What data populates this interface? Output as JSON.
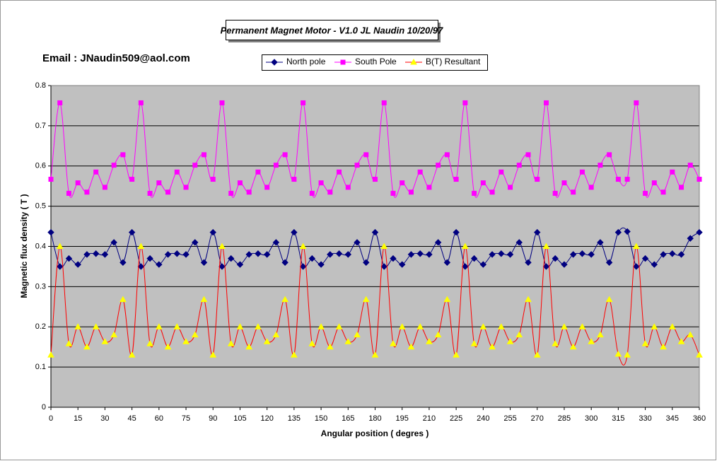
{
  "chart_data": {
    "type": "line",
    "title": "Permanent Magnet Motor - V1.0 JL Naudin 10/20/97",
    "annotation": "Email : JNaudin509@aol.com",
    "xlabel": "Angular position ( degres )",
    "ylabel": "Magnetic flux density ( T )",
    "x": [
      0,
      5,
      10,
      15,
      20,
      25,
      30,
      35,
      40,
      45,
      50,
      55,
      60,
      65,
      70,
      75,
      80,
      85,
      90,
      95,
      100,
      105,
      110,
      115,
      120,
      125,
      130,
      135,
      140,
      145,
      150,
      155,
      160,
      165,
      170,
      175,
      180,
      185,
      190,
      195,
      200,
      205,
      210,
      215,
      220,
      225,
      230,
      235,
      240,
      245,
      250,
      255,
      260,
      265,
      270,
      275,
      280,
      285,
      290,
      295,
      300,
      305,
      310,
      315,
      320,
      325,
      330,
      335,
      340,
      345,
      350,
      355,
      360
    ],
    "xlim": [
      0,
      360
    ],
    "xticks": [
      0,
      15,
      30,
      45,
      60,
      75,
      90,
      105,
      120,
      135,
      150,
      165,
      180,
      195,
      210,
      225,
      240,
      255,
      270,
      285,
      300,
      315,
      330,
      345,
      360
    ],
    "ylim": [
      0,
      0.8
    ],
    "yticks": [
      0,
      0.1,
      0.2,
      0.3,
      0.4,
      0.5,
      0.6,
      0.7,
      0.8
    ],
    "grid": true,
    "legend": "top",
    "series": [
      {
        "name": "North pole",
        "color": "#000080",
        "marker": "diamond",
        "values": [
          0.435,
          0.35,
          0.37,
          0.355,
          0.38,
          0.382,
          0.38,
          0.41,
          0.36,
          0.435,
          0.35,
          0.37,
          0.355,
          0.38,
          0.382,
          0.38,
          0.41,
          0.36,
          0.435,
          0.35,
          0.37,
          0.355,
          0.38,
          0.382,
          0.38,
          0.41,
          0.36,
          0.435,
          0.35,
          0.37,
          0.355,
          0.38,
          0.382,
          0.38,
          0.41,
          0.36,
          0.435,
          0.35,
          0.37,
          0.355,
          0.38,
          0.382,
          0.38,
          0.41,
          0.36,
          0.435,
          0.35,
          0.37,
          0.355,
          0.38,
          0.382,
          0.38,
          0.41,
          0.36,
          0.435,
          0.35,
          0.37,
          0.355,
          0.38,
          0.382,
          0.38,
          0.41,
          0.36,
          0.435,
          0.437,
          0.35,
          0.37,
          0.355,
          0.38,
          0.382,
          0.38,
          0.42,
          0.435
        ]
      },
      {
        "name": "South Pole",
        "color": "#ff00ff",
        "marker": "square",
        "values": [
          0.567,
          0.757,
          0.532,
          0.558,
          0.535,
          0.585,
          0.547,
          0.602,
          0.628,
          0.567,
          0.757,
          0.532,
          0.558,
          0.535,
          0.585,
          0.547,
          0.602,
          0.628,
          0.567,
          0.757,
          0.532,
          0.558,
          0.535,
          0.585,
          0.547,
          0.602,
          0.628,
          0.567,
          0.757,
          0.532,
          0.558,
          0.535,
          0.585,
          0.547,
          0.602,
          0.628,
          0.567,
          0.757,
          0.532,
          0.558,
          0.535,
          0.585,
          0.547,
          0.602,
          0.628,
          0.567,
          0.757,
          0.532,
          0.558,
          0.535,
          0.585,
          0.547,
          0.602,
          0.628,
          0.567,
          0.757,
          0.532,
          0.558,
          0.535,
          0.585,
          0.547,
          0.602,
          0.628,
          0.567,
          0.567,
          0.757,
          0.532,
          0.558,
          0.535,
          0.585,
          0.547,
          0.602,
          0.567
        ]
      },
      {
        "name": "B(T) Resultant",
        "color": "#ff0000",
        "marker_color": "#ffff00",
        "marker": "triangle",
        "values": [
          0.13,
          0.4,
          0.158,
          0.2,
          0.15,
          0.2,
          0.163,
          0.18,
          0.268,
          0.13,
          0.4,
          0.158,
          0.2,
          0.15,
          0.2,
          0.163,
          0.18,
          0.268,
          0.13,
          0.4,
          0.158,
          0.2,
          0.15,
          0.2,
          0.163,
          0.18,
          0.268,
          0.13,
          0.4,
          0.158,
          0.2,
          0.15,
          0.2,
          0.163,
          0.18,
          0.268,
          0.13,
          0.4,
          0.158,
          0.2,
          0.15,
          0.2,
          0.163,
          0.18,
          0.268,
          0.13,
          0.4,
          0.158,
          0.2,
          0.15,
          0.2,
          0.163,
          0.18,
          0.268,
          0.13,
          0.4,
          0.158,
          0.2,
          0.15,
          0.2,
          0.163,
          0.18,
          0.268,
          0.132,
          0.13,
          0.4,
          0.158,
          0.2,
          0.15,
          0.2,
          0.163,
          0.18,
          0.13
        ]
      }
    ]
  }
}
